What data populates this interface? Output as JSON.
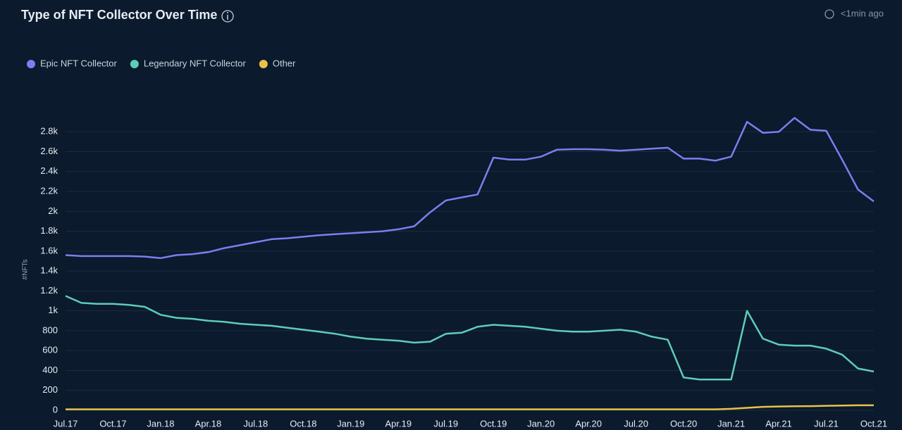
{
  "chart_data": {
    "type": "line",
    "title": "Type of NFT Collector Over Time",
    "updated": "<1min ago",
    "y_label": "#NFTs",
    "x": [
      "Jul.17",
      "Aug.17",
      "Sep.17",
      "Oct.17",
      "Nov.17",
      "Dec.17",
      "Jan.18",
      "Feb.18",
      "Mar.18",
      "Apr.18",
      "May.18",
      "Jun.18",
      "Jul.18",
      "Aug.18",
      "Sep.18",
      "Oct.18",
      "Nov.18",
      "Dec.18",
      "Jan.19",
      "Feb.19",
      "Mar.19",
      "Apr.19",
      "May.19",
      "Jun.19",
      "Jul.19",
      "Aug.19",
      "Sep.19",
      "Oct.19",
      "Nov.19",
      "Dec.19",
      "Jan.20",
      "Feb.20",
      "Mar.20",
      "Apr.20",
      "May.20",
      "Jun.20",
      "Jul.20",
      "Aug.20",
      "Sep.20",
      "Oct.20",
      "Nov.20",
      "Dec.20",
      "Jan.21",
      "Feb.21",
      "Mar.21",
      "Apr.21",
      "May.21",
      "Jun.21",
      "Jul.21",
      "Aug.21",
      "Sep.21",
      "Oct.21"
    ],
    "xticks": [
      "Jul.17",
      "Oct.17",
      "Jan.18",
      "Apr.18",
      "Jul.18",
      "Oct.18",
      "Jan.19",
      "Apr.19",
      "Jul.19",
      "Oct.19",
      "Jan.20",
      "Apr.20",
      "Jul.20",
      "Oct.20",
      "Jan.21",
      "Apr.21",
      "Jul.21",
      "Oct.21"
    ],
    "series": [
      {
        "name": "Epic NFT Collector",
        "color": "#7b7ff0",
        "values": [
          1560,
          1550,
          1550,
          1550,
          1550,
          1545,
          1530,
          1560,
          1570,
          1590,
          1630,
          1660,
          1690,
          1720,
          1730,
          1745,
          1760,
          1770,
          1780,
          1790,
          1800,
          1820,
          1850,
          1990,
          2110,
          2140,
          2170,
          2540,
          2520,
          2520,
          2550,
          2620,
          2625,
          2625,
          2620,
          2610,
          2620,
          2630,
          2640,
          2530,
          2530,
          2510,
          2550,
          2900,
          2790,
          2800,
          2940,
          2820,
          2810,
          2520,
          2220,
          2100
        ]
      },
      {
        "name": "Legendary NFT Collector",
        "color": "#5ecdb8",
        "values": [
          1150,
          1080,
          1070,
          1070,
          1060,
          1040,
          960,
          930,
          920,
          900,
          890,
          870,
          860,
          850,
          830,
          810,
          790,
          770,
          740,
          720,
          710,
          700,
          680,
          690,
          770,
          780,
          840,
          860,
          850,
          840,
          820,
          800,
          790,
          790,
          800,
          810,
          790,
          740,
          710,
          330,
          310,
          310,
          310,
          1000,
          720,
          660,
          650,
          650,
          620,
          560,
          420,
          390
        ]
      },
      {
        "name": "Other",
        "color": "#e8c24a",
        "values": [
          10,
          10,
          10,
          10,
          10,
          10,
          10,
          10,
          10,
          10,
          10,
          10,
          10,
          10,
          10,
          10,
          10,
          10,
          10,
          10,
          10,
          10,
          10,
          10,
          10,
          10,
          10,
          10,
          10,
          10,
          10,
          10,
          10,
          10,
          10,
          10,
          10,
          10,
          10,
          10,
          10,
          10,
          15,
          25,
          35,
          38,
          40,
          42,
          45,
          48,
          50,
          50
        ]
      }
    ],
    "ylim": [
      0,
      3000
    ],
    "yticks": [
      0,
      200,
      400,
      600,
      800,
      {
        "value": 1000,
        "label": "1k"
      },
      {
        "value": 1200,
        "label": "1.2k"
      },
      {
        "value": 1400,
        "label": "1.4k"
      },
      {
        "value": 1600,
        "label": "1.6k"
      },
      {
        "value": 1800,
        "label": "1.8k"
      },
      {
        "value": 2000,
        "label": "2k"
      },
      {
        "value": 2200,
        "label": "2.2k"
      },
      {
        "value": 2400,
        "label": "2.4k"
      },
      {
        "value": 2600,
        "label": "2.6k"
      },
      {
        "value": 2800,
        "label": "2.8k"
      }
    ],
    "grid": true
  }
}
